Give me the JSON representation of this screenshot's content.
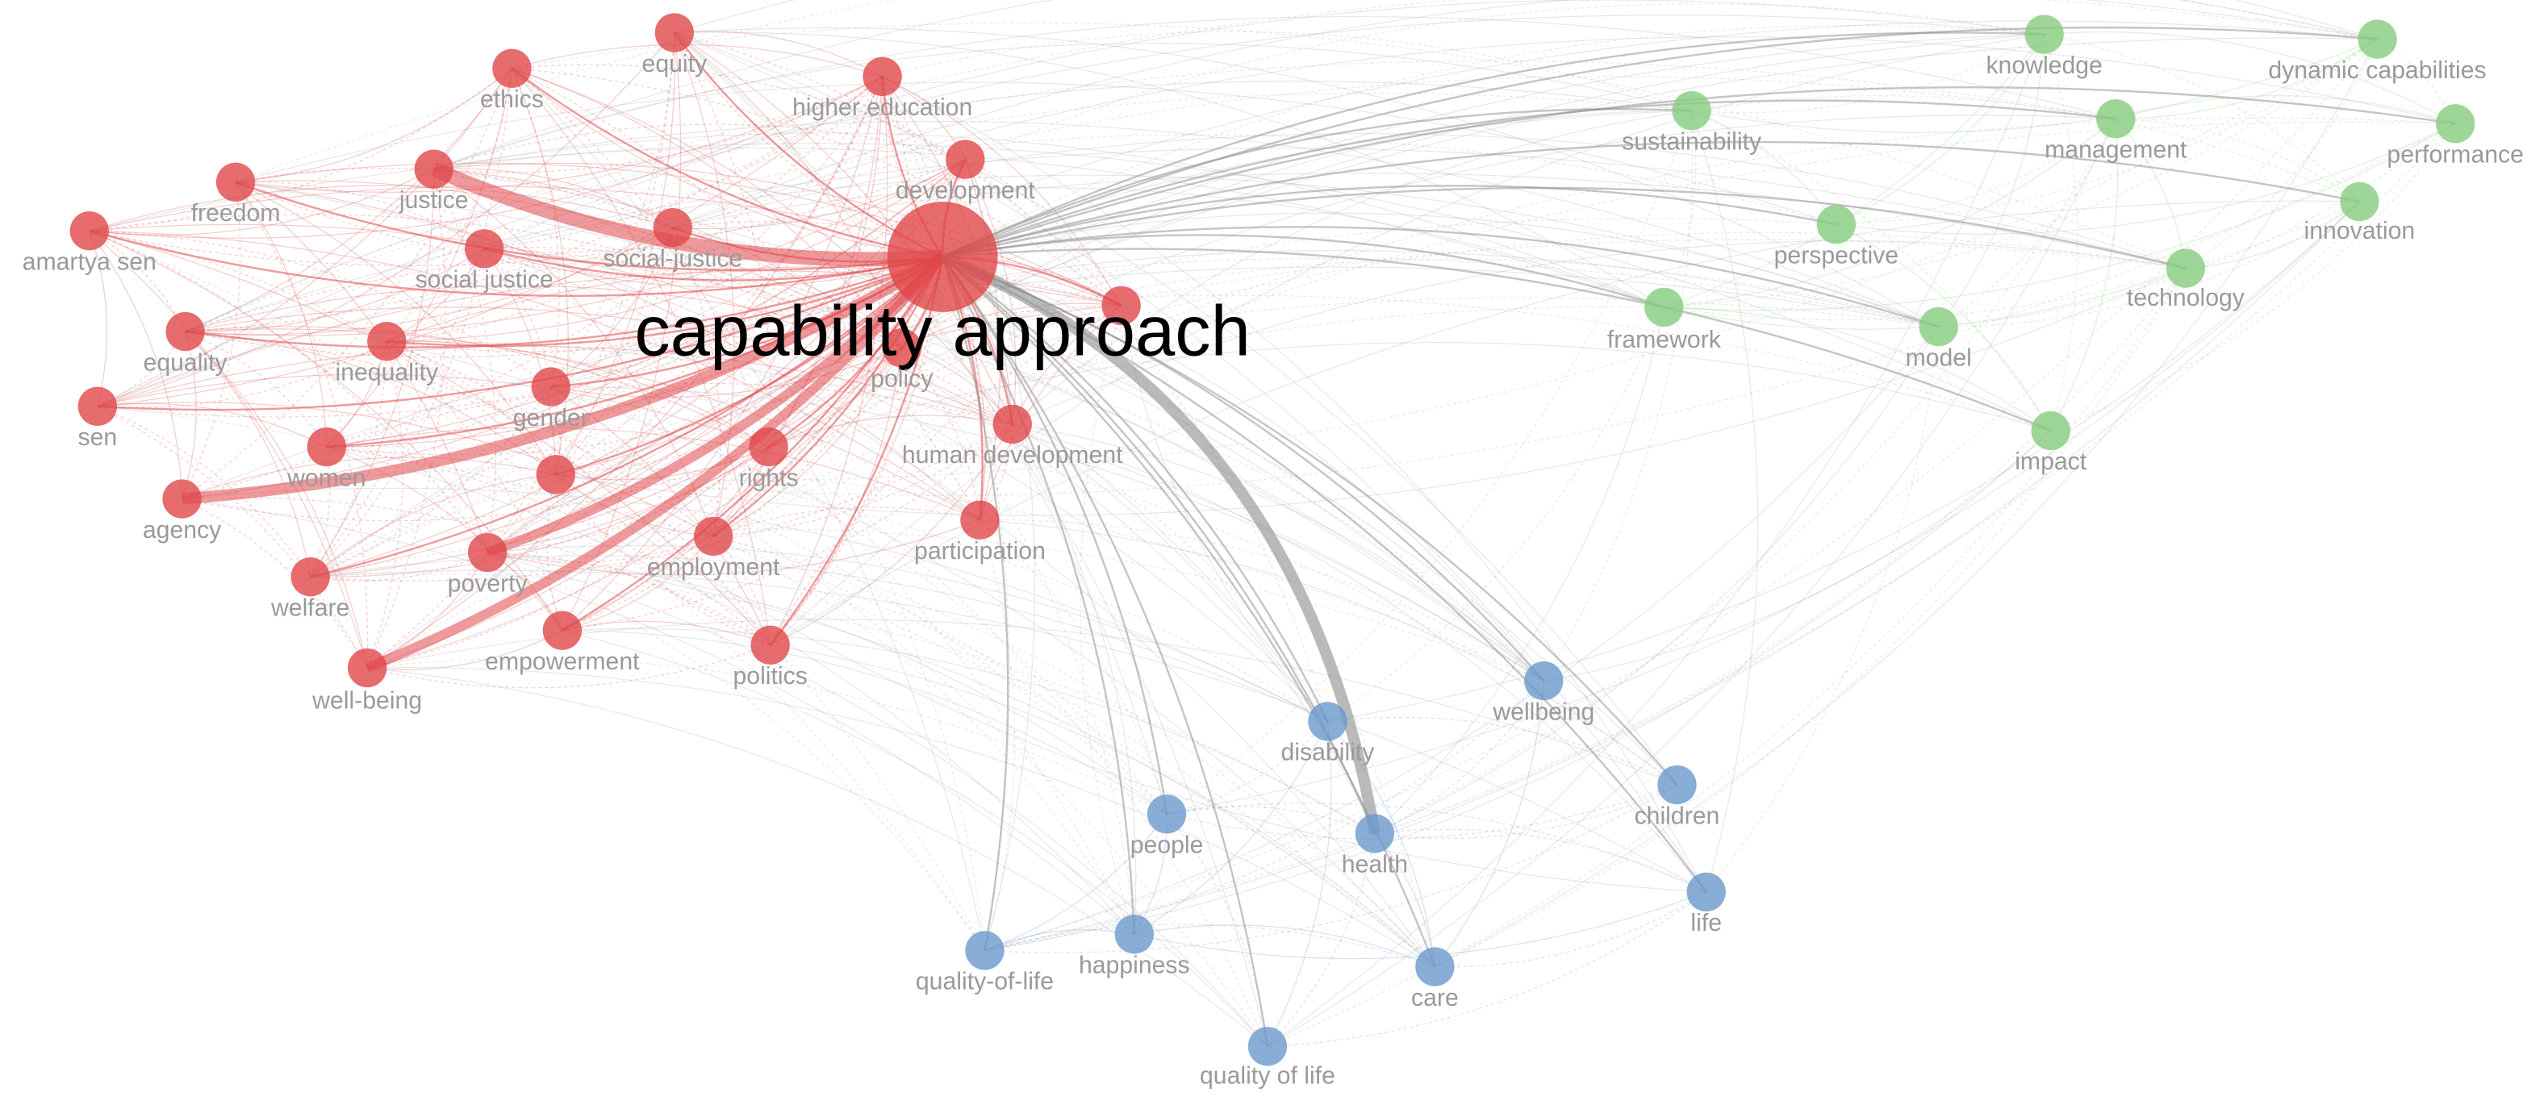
{
  "clusters": [
    {
      "color": "#e0474a",
      "nodes": [
        "capability approach",
        "equity",
        "ethics",
        "higher education",
        "freedom",
        "justice",
        "development",
        "amartya sen",
        "social-justice",
        "social justice",
        "equality",
        "inequality",
        "policy",
        "sen",
        "gender",
        "women",
        "rights",
        "human development",
        "agency",
        "employment",
        "participation",
        "poverty",
        "welfare",
        "empowerment",
        "politics",
        "well-being"
      ]
    },
    {
      "color": "#86cc7e",
      "nodes": [
        "knowledge",
        "dynamic capabilities",
        "sustainability",
        "management",
        "performance",
        "perspective",
        "innovation",
        "technology",
        "framework",
        "model",
        "impact"
      ]
    },
    {
      "color": "#6a98cc",
      "nodes": [
        "wellbeing",
        "disability",
        "children",
        "people",
        "health",
        "life",
        "quality-of-life",
        "happiness",
        "care",
        "quality of life"
      ]
    }
  ]
}
